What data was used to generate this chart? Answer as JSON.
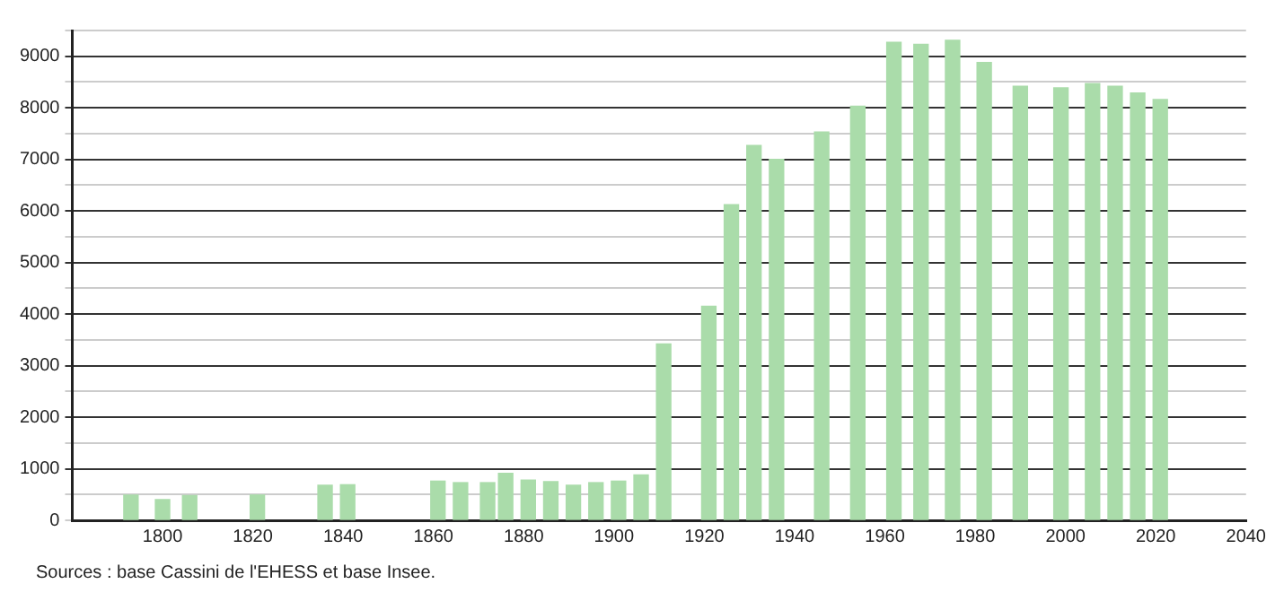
{
  "chart_data": {
    "type": "bar",
    "x": [
      1793,
      1800,
      1806,
      1821,
      1836,
      1841,
      1861,
      1866,
      1872,
      1876,
      1881,
      1886,
      1891,
      1896,
      1901,
      1906,
      1911,
      1921,
      1926,
      1931,
      1936,
      1946,
      1954,
      1962,
      1968,
      1975,
      1982,
      1990,
      1999,
      2006,
      2011,
      2016,
      2021
    ],
    "values": [
      490,
      400,
      480,
      490,
      680,
      690,
      760,
      730,
      730,
      910,
      780,
      750,
      680,
      730,
      760,
      880,
      3420,
      4150,
      6120,
      7270,
      7000,
      7530,
      8030,
      9270,
      9230,
      9310,
      8880,
      8420,
      8390,
      8470,
      8420,
      8290,
      8160
    ],
    "color": "#aadcaa",
    "xlim": [
      1780,
      2040
    ],
    "xticks": [
      1800,
      1820,
      1840,
      1860,
      1880,
      1900,
      1920,
      1940,
      1960,
      1980,
      2000,
      2020,
      2040
    ],
    "ylim": [
      0,
      9500
    ],
    "yticks": [
      0,
      {
        "value": 500,
        "label": null
      },
      1000,
      {
        "value": 1500,
        "label": null
      },
      2000,
      {
        "value": 2500,
        "label": null
      },
      3000,
      {
        "value": 3500,
        "label": null
      },
      4000,
      {
        "value": 4500,
        "label": null
      },
      5000,
      {
        "value": 5500,
        "label": null
      },
      6000,
      {
        "value": 6500,
        "label": null
      },
      7000,
      {
        "value": 7500,
        "label": null
      },
      8000,
      {
        "value": 8500,
        "label": null
      },
      9000,
      {
        "value": 9500,
        "label": null
      }
    ],
    "grid": "y",
    "legend": false,
    "annotations": [
      "Sources : base Cassini de l'EHESS et base Insee."
    ]
  }
}
